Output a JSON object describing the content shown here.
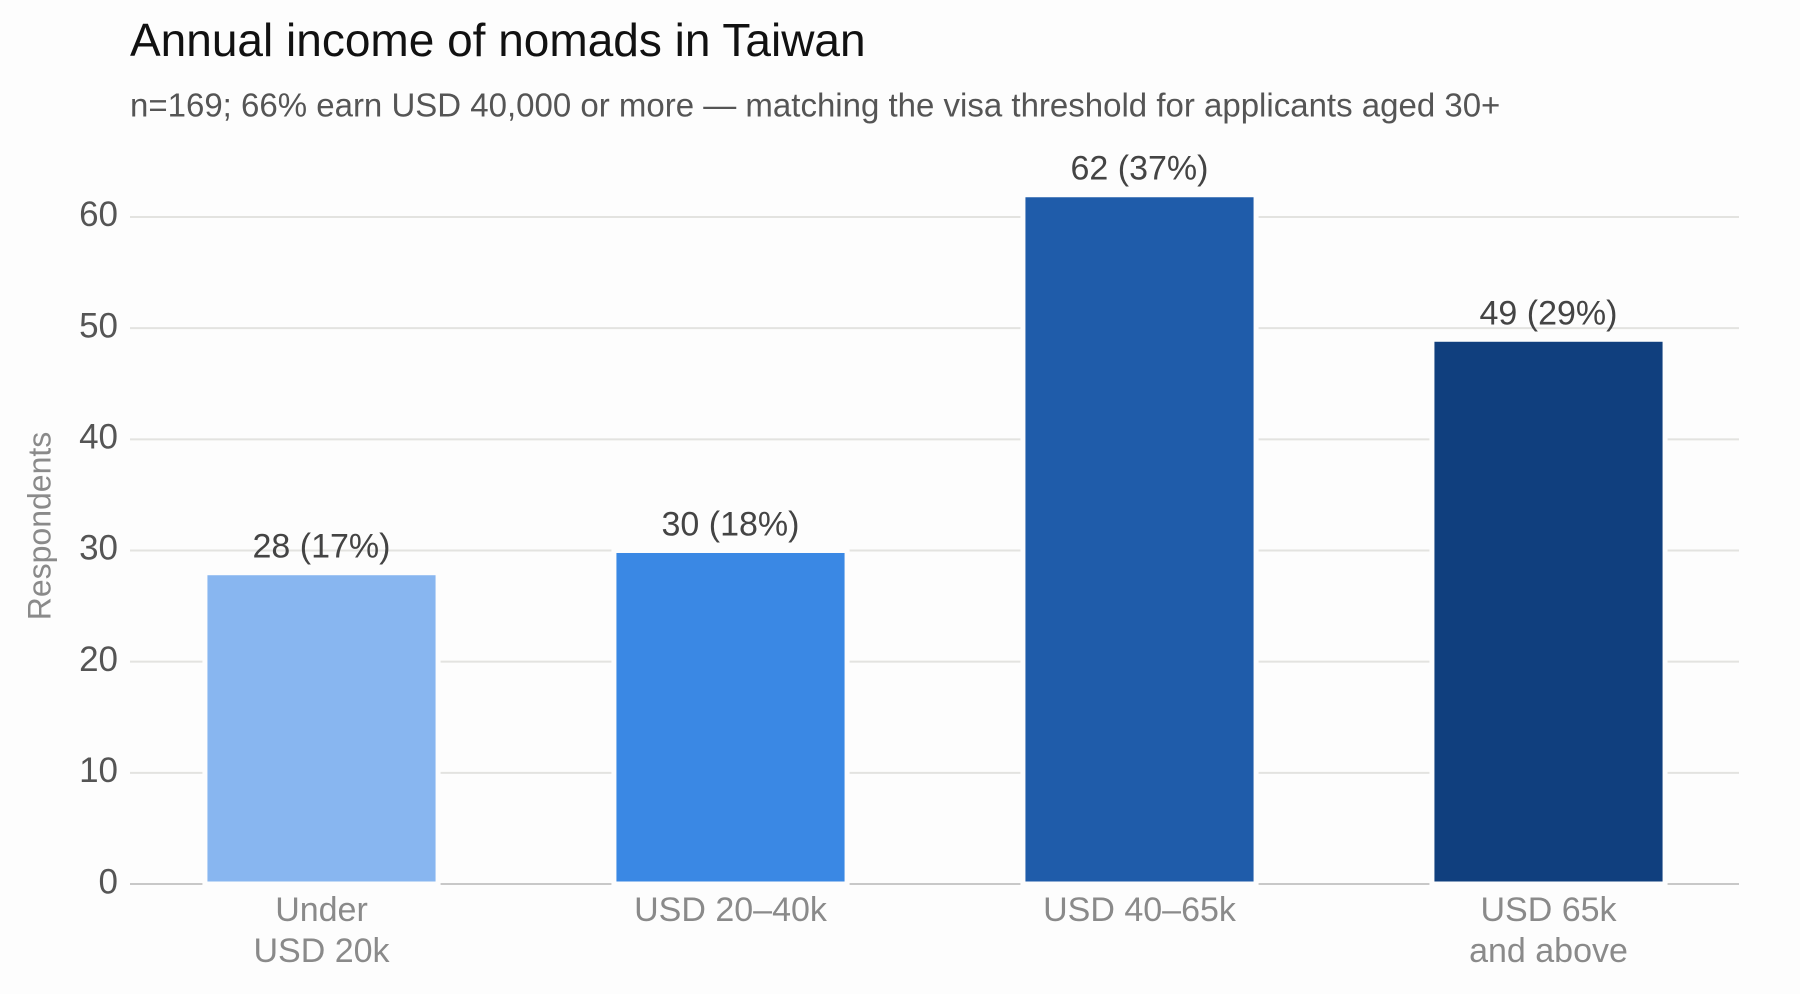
{
  "chart_data": {
    "type": "bar",
    "title": "Annual income of nomads in Taiwan",
    "subtitle": "n=169; 66% earn USD 40,000 or more — matching the visa threshold for applicants aged 30+",
    "y_label": "Respondents",
    "categories": [
      "Under\nUSD 20k",
      "USD 20–40k",
      "USD 40–65k",
      "USD 65k\nand above"
    ],
    "values": [
      28,
      30,
      62,
      49
    ],
    "value_labels": [
      "28 (17%)",
      "30 (18%)",
      "62 (37%)",
      "49 (29%)"
    ],
    "colors": [
      "#88b6f0",
      "#3a88e4",
      "#1f5caa",
      "#103f7e"
    ],
    "ylim": [
      0,
      65
    ],
    "yticks": [
      0,
      10,
      20,
      30,
      40,
      50,
      60
    ],
    "grid": true
  }
}
